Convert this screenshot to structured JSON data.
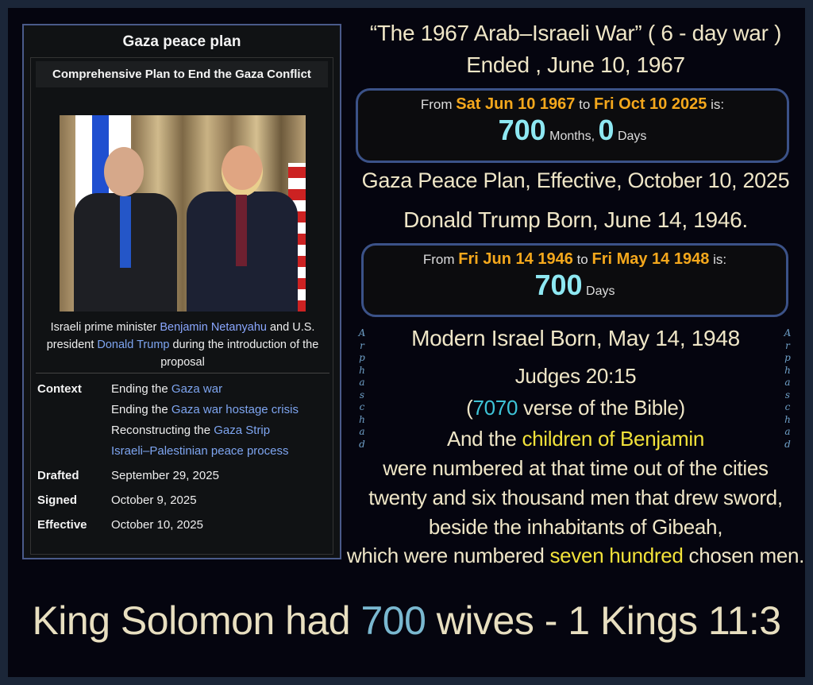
{
  "infobox": {
    "title": "Gaza peace plan",
    "subtitle": "Comprehensive Plan to End the Gaza Conflict",
    "caption": {
      "pre": "Israeli prime minister ",
      "link1": "Benjamin Netanyahu",
      "mid": " and U.S. president ",
      "link2": "Donald Trump",
      "post": " during the introduction of the proposal"
    },
    "context_label": "Context",
    "context": [
      {
        "pre": "Ending the ",
        "link": "Gaza war"
      },
      {
        "pre": "Ending the ",
        "link": "Gaza war hostage crisis"
      },
      {
        "pre": "Reconstructing the ",
        "link": "Gaza Strip"
      },
      {
        "pre": "",
        "link": "Israeli–Palestinian peace process"
      }
    ],
    "drafted_label": "Drafted",
    "drafted": "September 29, 2025",
    "signed_label": "Signed",
    "signed": "October 9, 2025",
    "effective_label": "Effective",
    "effective": "October 10, 2025"
  },
  "right": {
    "line1": "“The 1967 Arab–Israeli War” ( 6 - day war )",
    "line2": "Ended , June 10, 1967",
    "box1": {
      "from": "From",
      "d1": "Sat Jun 10 1967",
      "to": "to",
      "d2": "Fri Oct 10 2025",
      "is": "is:",
      "n1": "700",
      "u1": "Months,",
      "n2": "0",
      "u2": "Days"
    },
    "line3": "Gaza Peace Plan, Effective, October 10, 2025",
    "line4": "Donald Trump Born, June 14, 1946.",
    "box2": {
      "from": "From",
      "d1": "Fri Jun 14 1946",
      "to": "to",
      "d2": "Fri May 14 1948",
      "is": "is:",
      "n1": "700",
      "u1": "Days"
    },
    "line5": "Modern Israel Born, May 14, 1948",
    "line6": "Judges 20:15",
    "line7": {
      "open": "(",
      "num": "7070",
      "rest": " verse of the Bible)"
    },
    "line8": {
      "pre": "And the ",
      "hl": "children of Benjamin"
    },
    "line9": "were numbered at that time out of the cities",
    "line10": "twenty and six thousand men that drew sword,",
    "line11": "beside the inhabitants of Gibeah,",
    "line12": {
      "pre": "which were numbered ",
      "hl": "seven hundred",
      "post": " chosen men."
    }
  },
  "side_text": "Arphaschad",
  "bottom": {
    "pre": "King Solomon had ",
    "num": "700",
    "post": " wives - 1 Kings 11:3"
  },
  "colors": {
    "accent_orange": "#f5a81c",
    "accent_cyan": "#8ee8f2",
    "highlight_yellow": "#f2e23a",
    "text_cream": "#efe6c7",
    "box_border": "#3b5288"
  }
}
